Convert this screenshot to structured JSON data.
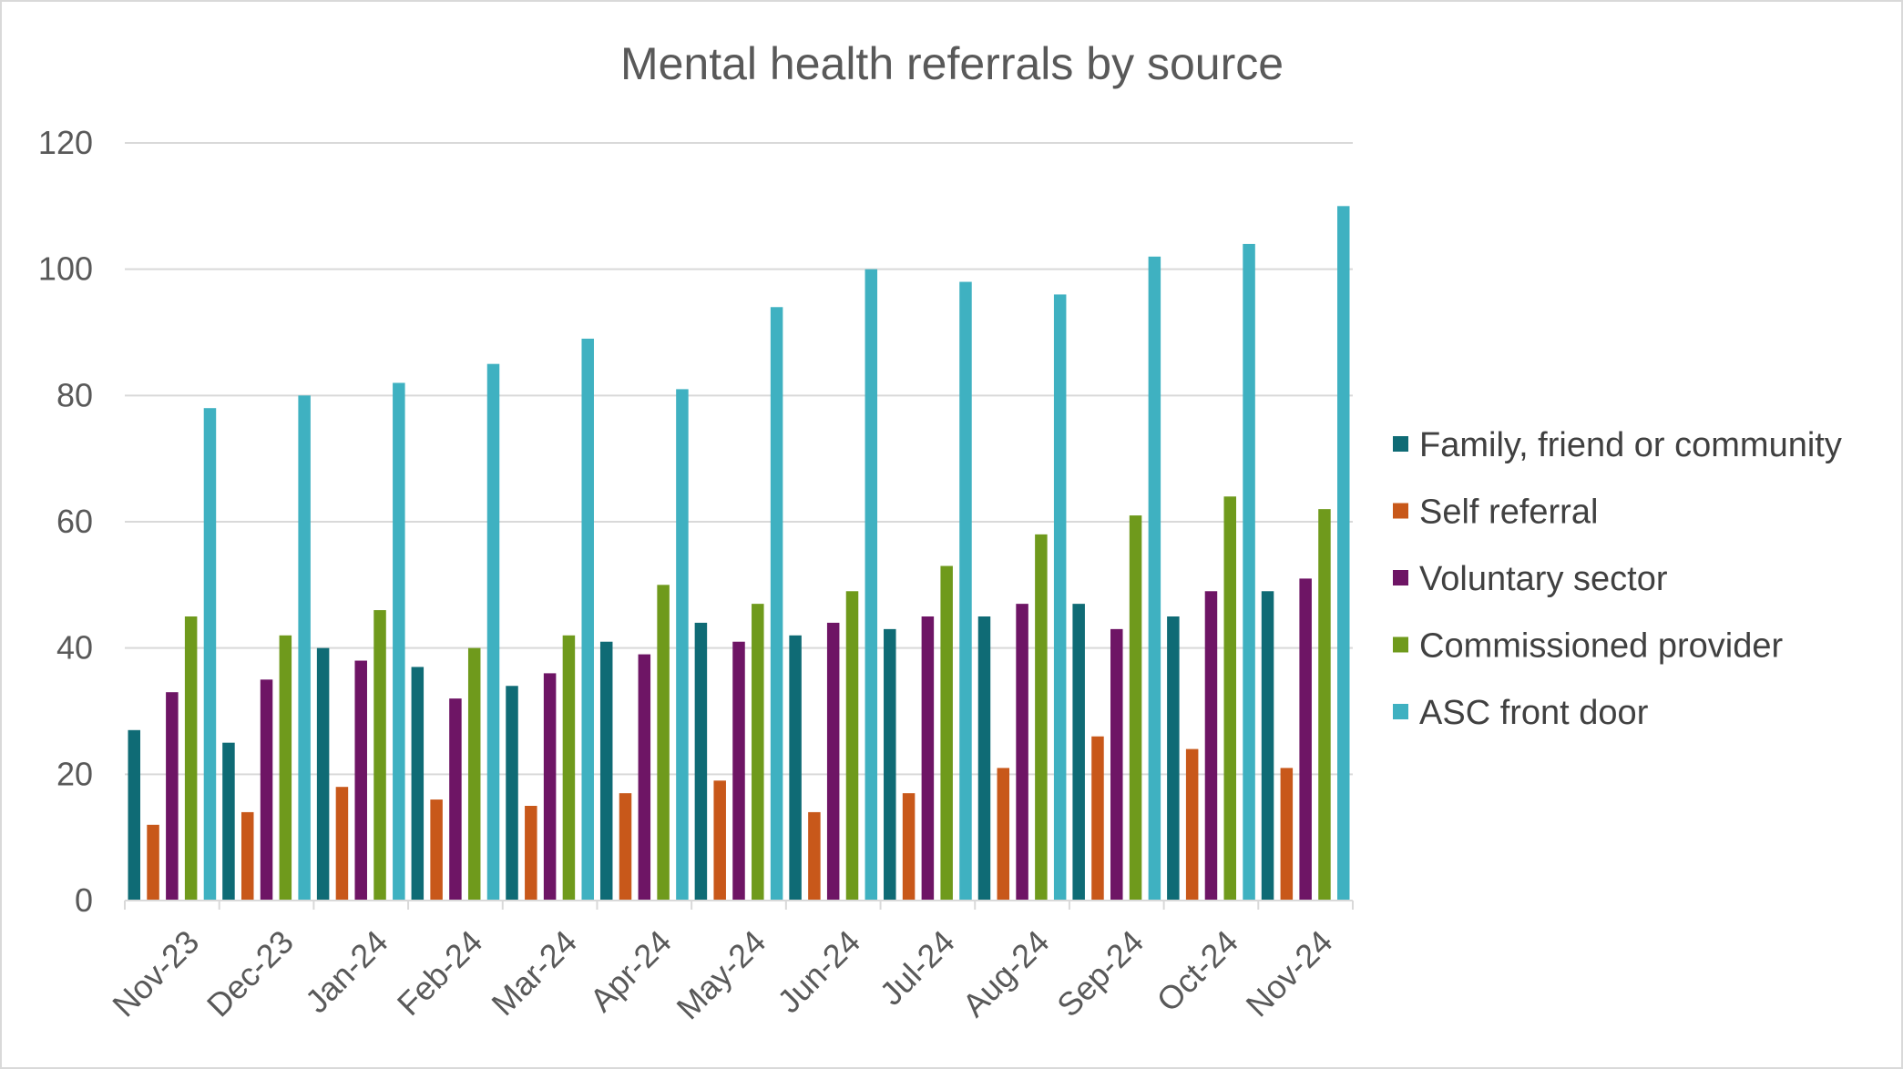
{
  "chart_data": {
    "type": "bar",
    "title": "Mental health referrals by source",
    "xlabel": "",
    "ylabel": "",
    "categories": [
      "Nov-23",
      "Dec-23",
      "Jan-24",
      "Feb-24",
      "Mar-24",
      "Apr-24",
      "May-24",
      "Jun-24",
      "Jul-24",
      "Aug-24",
      "Sep-24",
      "Oct-24",
      "Nov-24"
    ],
    "ylim": [
      0,
      120
    ],
    "yticks": [
      "0",
      "20",
      "40",
      "60",
      "80",
      "100",
      "120"
    ],
    "grid": true,
    "legend_position": "right",
    "series": [
      {
        "name": "Family, friend or community",
        "color": "#0f6b75",
        "values": [
          27,
          25,
          40,
          37,
          34,
          41,
          44,
          42,
          43,
          45,
          47,
          45,
          49
        ]
      },
      {
        "name": "Self referral",
        "color": "#c8581a",
        "values": [
          12,
          14,
          18,
          16,
          15,
          17,
          19,
          14,
          17,
          21,
          26,
          24,
          21
        ]
      },
      {
        "name": "Voluntary sector",
        "color": "#6e1565",
        "values": [
          33,
          35,
          38,
          32,
          36,
          39,
          41,
          44,
          45,
          47,
          43,
          49,
          51
        ]
      },
      {
        "name": "Commissioned provider",
        "color": "#6f9a1c",
        "values": [
          45,
          42,
          46,
          40,
          42,
          50,
          47,
          49,
          53,
          58,
          61,
          64,
          62
        ]
      },
      {
        "name": "ASC front door",
        "color": "#3fb1c1",
        "values": [
          78,
          80,
          82,
          85,
          89,
          81,
          94,
          100,
          98,
          96,
          102,
          104,
          110
        ]
      }
    ]
  }
}
